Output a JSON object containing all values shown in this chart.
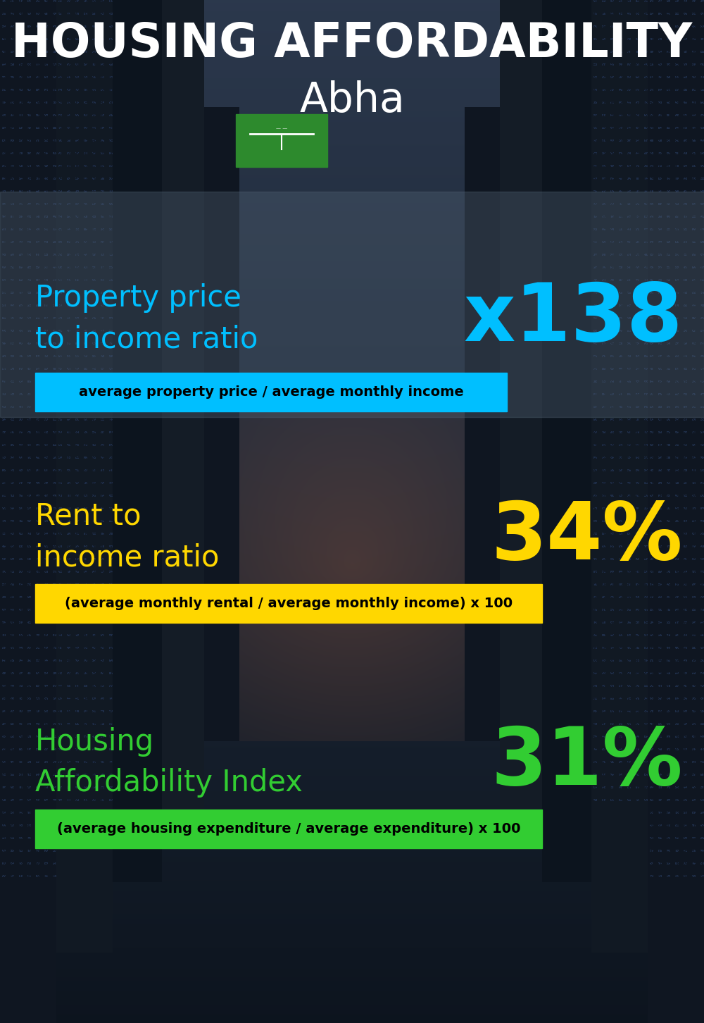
{
  "title_line1": "HOUSING AFFORDABILITY",
  "title_line2": "Abha",
  "title_color": "#ffffff",
  "title_fontsize": 48,
  "subtitle_fontsize": 42,
  "section1_label": "Property price\nto income ratio",
  "section1_value": "x138",
  "section1_label_color": "#00bfff",
  "section1_value_color": "#00bfff",
  "section1_label_fontsize": 30,
  "section1_value_fontsize": 82,
  "section1_formula": "average property price / average monthly income",
  "section1_formula_bg": "#00bfff",
  "section1_formula_color": "#000000",
  "section2_label": "Rent to\nincome ratio",
  "section2_value": "34%",
  "section2_label_color": "#ffd700",
  "section2_value_color": "#ffd700",
  "section2_label_fontsize": 30,
  "section2_value_fontsize": 82,
  "section2_formula": "(average monthly rental / average monthly income) x 100",
  "section2_formula_bg": "#ffd700",
  "section2_formula_color": "#000000",
  "section3_label": "Housing\nAffordability Index",
  "section3_value": "31%",
  "section3_label_color": "#32cd32",
  "section3_value_color": "#32cd32",
  "section3_label_fontsize": 30,
  "section3_value_fontsize": 82,
  "section3_formula": "(average housing expenditure / average expenditure) x 100",
  "section3_formula_bg": "#32cd32",
  "section3_formula_color": "#000000",
  "bg_color": "#0a0f1e",
  "fig_width": 10.0,
  "fig_height": 14.52
}
